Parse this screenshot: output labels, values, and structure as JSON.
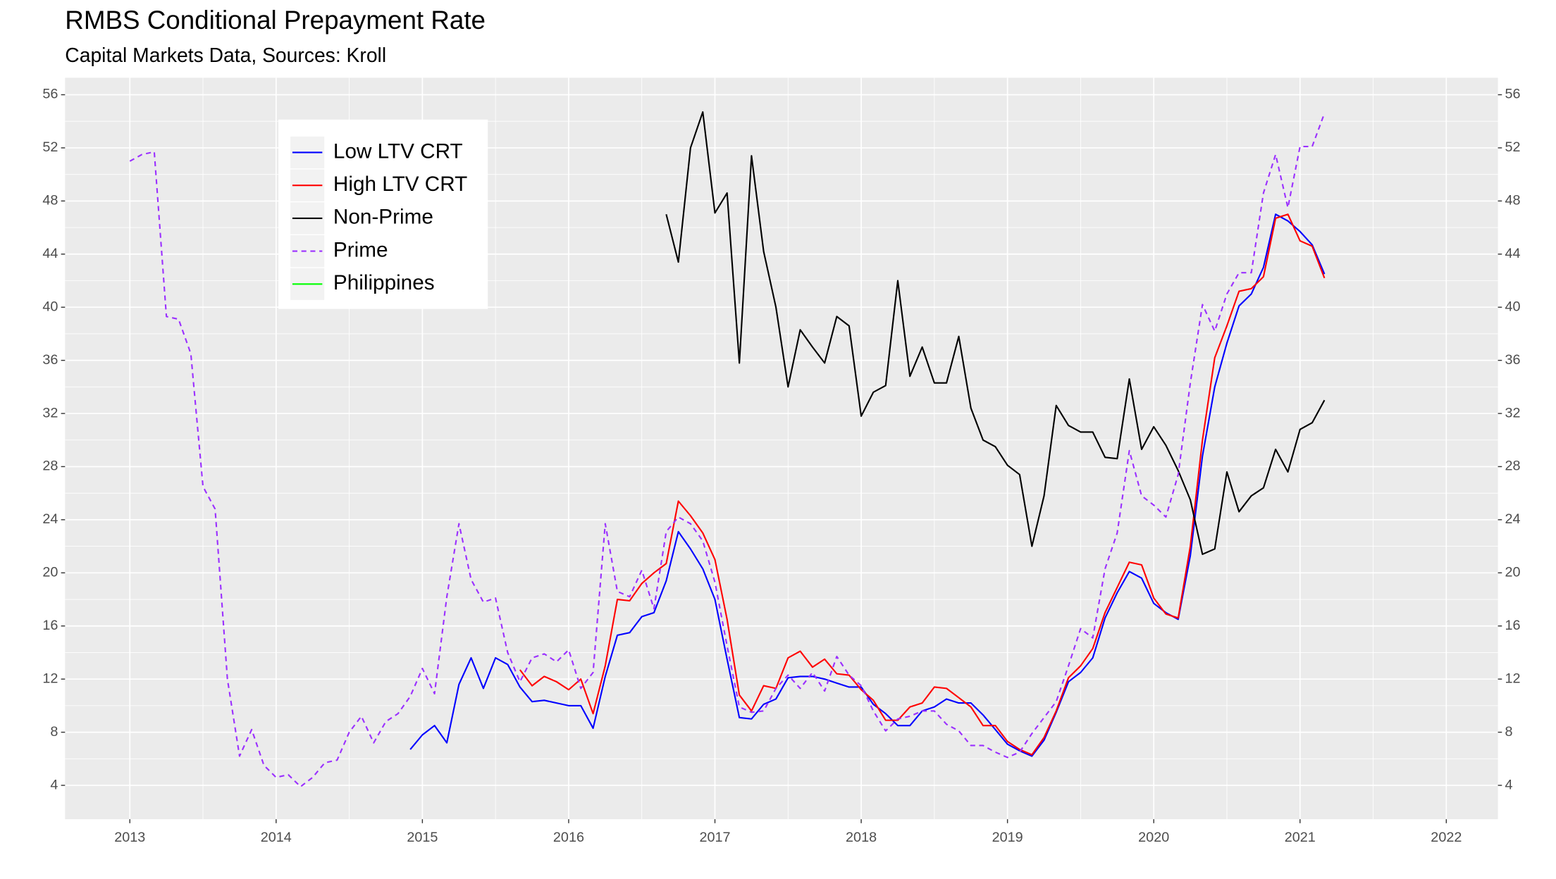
{
  "chart_data": {
    "type": "line",
    "title": "RMBS Conditional Prepayment Rate",
    "subtitle": "Capital Markets Data, Sources: Kroll",
    "x": [
      2013.0,
      2013.083,
      2013.167,
      2013.25,
      2013.333,
      2013.417,
      2013.5,
      2013.583,
      2013.667,
      2013.75,
      2013.833,
      2013.917,
      2014.0,
      2014.083,
      2014.167,
      2014.25,
      2014.333,
      2014.417,
      2014.5,
      2014.583,
      2014.667,
      2014.75,
      2014.833,
      2014.917,
      2015.0,
      2015.083,
      2015.167,
      2015.25,
      2015.333,
      2015.417,
      2015.5,
      2015.583,
      2015.667,
      2015.75,
      2015.833,
      2015.917,
      2016.0,
      2016.083,
      2016.167,
      2016.25,
      2016.333,
      2016.417,
      2016.5,
      2016.583,
      2016.667,
      2016.75,
      2016.833,
      2016.917,
      2017.0,
      2017.083,
      2017.167,
      2017.25,
      2017.333,
      2017.417,
      2017.5,
      2017.583,
      2017.667,
      2017.75,
      2017.833,
      2017.917,
      2018.0,
      2018.083,
      2018.167,
      2018.25,
      2018.333,
      2018.417,
      2018.5,
      2018.583,
      2018.667,
      2018.75,
      2018.833,
      2018.917,
      2019.0,
      2019.083,
      2019.167,
      2019.25,
      2019.333,
      2019.417,
      2019.5,
      2019.583,
      2019.667,
      2019.75,
      2019.833,
      2019.917,
      2020.0,
      2020.083,
      2020.167,
      2020.25,
      2020.333,
      2020.417,
      2020.5,
      2020.583,
      2020.667,
      2020.75,
      2020.833,
      2020.917,
      2021.0,
      2021.083,
      2021.167
    ],
    "series": [
      {
        "name": "Low LTV CRT",
        "color": "#0000ff",
        "dash": false,
        "values": [
          null,
          null,
          null,
          null,
          null,
          null,
          null,
          null,
          null,
          null,
          null,
          null,
          null,
          null,
          null,
          null,
          null,
          null,
          null,
          null,
          null,
          null,
          null,
          6.7,
          7.8,
          8.5,
          7.2,
          11.6,
          13.6,
          11.3,
          13.6,
          13.1,
          11.4,
          10.3,
          10.4,
          10.2,
          10,
          10,
          8.3,
          12.2,
          15.3,
          15.5,
          16.7,
          17,
          19.4,
          23.1,
          21.8,
          20.3,
          18,
          13.5,
          9.1,
          9,
          10.1,
          10.5,
          12.1,
          12.2,
          12.2,
          12,
          11.7,
          11.4,
          11.4,
          10.1,
          9.4,
          8.5,
          8.5,
          9.6,
          9.9,
          10.5,
          10.2,
          10.2,
          9.3,
          8.2,
          7.1,
          6.6,
          6.2,
          7.4,
          9.5,
          11.8,
          12.5,
          13.6,
          16.6,
          18.5,
          20.1,
          19.6,
          17.7,
          17,
          16.5,
          21.3,
          28.8,
          34,
          37.3,
          40.1,
          41,
          43,
          47,
          46.5,
          45.7,
          44.7,
          42.5
        ]
      },
      {
        "name": "High LTV CRT",
        "color": "#ff0000",
        "dash": false,
        "values": [
          null,
          null,
          null,
          null,
          null,
          null,
          null,
          null,
          null,
          null,
          null,
          null,
          null,
          null,
          null,
          null,
          null,
          null,
          null,
          null,
          null,
          null,
          null,
          null,
          null,
          null,
          null,
          null,
          null,
          null,
          null,
          null,
          12.7,
          11.5,
          12.2,
          11.8,
          11.2,
          12,
          9.4,
          13,
          18,
          17.9,
          19.2,
          20,
          20.7,
          25.4,
          24.3,
          23,
          21,
          16.5,
          10.8,
          9.6,
          11.5,
          11.3,
          13.6,
          14.1,
          12.9,
          13.5,
          12.4,
          12.3,
          11.2,
          10.4,
          8.9,
          8.9,
          9.9,
          10.2,
          11.4,
          11.3,
          10.6,
          9.9,
          8.5,
          8.5,
          7.3,
          6.7,
          6.3,
          7.6,
          9.6,
          12.1,
          13,
          14.3,
          17,
          18.9,
          20.8,
          20.6,
          18.1,
          16.9,
          16.6,
          22,
          30,
          36.2,
          38.6,
          41.2,
          41.4,
          42.3,
          46.7,
          47,
          45,
          44.6,
          42.2
        ]
      },
      {
        "name": "Non-Prime",
        "color": "#000000",
        "dash": false,
        "values": [
          null,
          null,
          null,
          null,
          null,
          null,
          null,
          null,
          null,
          null,
          null,
          null,
          null,
          null,
          null,
          null,
          null,
          null,
          null,
          null,
          null,
          null,
          null,
          null,
          null,
          null,
          null,
          null,
          null,
          null,
          null,
          null,
          null,
          null,
          null,
          null,
          null,
          null,
          null,
          null,
          null,
          null,
          null,
          null,
          47,
          43.4,
          52,
          54.7,
          47.1,
          48.6,
          35.8,
          51.4,
          44.2,
          40,
          34,
          38.3,
          37,
          35.8,
          39.3,
          38.6,
          31.8,
          33.6,
          34.1,
          42,
          34.8,
          37,
          34.3,
          34.3,
          37.8,
          32.4,
          30,
          29.5,
          28.1,
          27.4,
          22,
          25.8,
          32.6,
          31.1,
          30.6,
          30.6,
          28.7,
          28.6,
          34.6,
          29.3,
          31,
          29.6,
          27.7,
          25.5,
          21.4,
          21.8,
          27.6,
          24.6,
          25.8,
          26.4,
          29.3,
          27.6,
          30.8,
          31.3,
          33
        ]
      },
      {
        "name": "Prime",
        "color": "#9b30ff",
        "dash": true,
        "values": [
          51,
          51.5,
          51.7,
          39.3,
          39.1,
          36.5,
          26.5,
          24.8,
          12,
          6.2,
          8.2,
          5.5,
          4.6,
          4.8,
          3.9,
          4.6,
          5.7,
          5.9,
          8,
          9.2,
          7.2,
          8.8,
          9.4,
          10.7,
          12.8,
          10.9,
          18.2,
          23.7,
          19.5,
          17.8,
          18.1,
          14,
          11.8,
          13.6,
          13.9,
          13.3,
          14.2,
          11.3,
          12.5,
          23.7,
          18.6,
          18.2,
          20.2,
          17.3,
          23.1,
          24.2,
          23.7,
          22.4,
          19.3,
          14.5,
          9.9,
          9.5,
          9.6,
          11.3,
          12.3,
          11.3,
          12.5,
          11.1,
          13.7,
          12.3,
          11.5,
          9.6,
          8.1,
          9,
          9.2,
          9.6,
          9.6,
          8.6,
          8.1,
          7,
          7,
          6.5,
          6.1,
          6.5,
          7.9,
          9.1,
          10.3,
          13,
          15.8,
          15.1,
          20.3,
          23,
          29.2,
          25.8,
          25.1,
          24.2,
          27.4,
          34.3,
          40.2,
          38.2,
          41,
          42.6,
          42.6,
          48.6,
          51.5,
          47.5,
          52.1,
          52.1,
          54.6
        ]
      },
      {
        "name": "Philippines",
        "color": "#00ff00",
        "dash": false,
        "values": [
          null,
          null,
          null,
          null,
          null,
          null,
          null,
          null,
          null,
          null,
          null,
          null,
          null,
          null,
          null,
          null,
          null,
          null,
          null,
          null,
          null,
          null,
          null,
          null,
          null,
          null,
          null,
          null,
          null,
          null,
          null,
          null,
          null,
          null,
          null,
          null,
          null,
          null,
          null,
          null,
          null,
          null,
          null,
          null,
          null,
          null,
          null,
          null,
          null,
          null,
          null,
          null,
          null,
          null,
          null,
          null,
          null,
          null,
          null,
          null,
          null,
          null,
          null,
          null,
          null,
          null,
          null,
          null,
          null,
          null,
          null,
          null,
          null,
          null,
          null,
          null,
          null,
          null,
          null,
          null,
          null,
          null,
          null,
          null,
          null,
          null,
          null,
          null,
          null,
          null,
          null,
          null,
          null,
          null,
          null,
          null,
          null,
          null,
          null
        ]
      }
    ],
    "xlim": [
      2012.557,
      2022.353
    ],
    "xticks": [
      2013,
      2014,
      2015,
      2016,
      2017,
      2018,
      2019,
      2020,
      2021,
      2022
    ],
    "ylim": [
      1.45,
      57.28
    ],
    "yticks": [
      4,
      8,
      12,
      16,
      20,
      24,
      28,
      32,
      36,
      40,
      44,
      48,
      52,
      56
    ],
    "y2lim": [
      1.45,
      57.28
    ],
    "y2ticks": [
      4,
      8,
      12,
      16,
      20,
      24,
      28,
      32,
      36,
      40,
      44,
      48,
      52,
      56
    ],
    "grid": true,
    "legend": "top-left"
  }
}
